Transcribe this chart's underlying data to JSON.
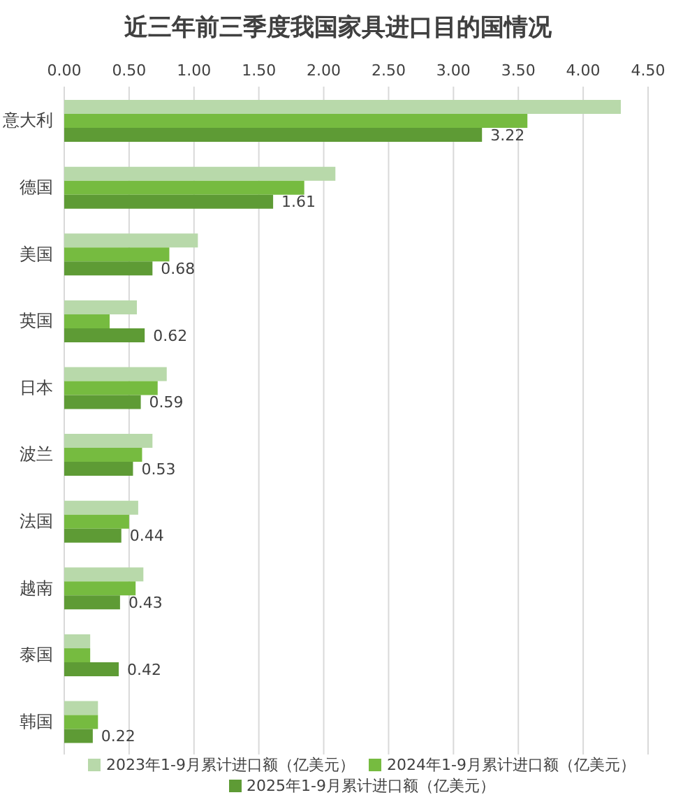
{
  "chart_data": {
    "type": "bar",
    "orientation": "horizontal",
    "title": "近三年前三季度我国家具进口目的国情况",
    "categories": [
      "意大利",
      "德国",
      "美国",
      "英国",
      "日本",
      "波兰",
      "法国",
      "越南",
      "泰国",
      "韩国"
    ],
    "series": [
      {
        "name": "2023年1-9月累计进口额（亿美元）",
        "color": "#b8d9aa",
        "values": [
          4.29,
          2.09,
          1.03,
          0.56,
          0.79,
          0.68,
          0.57,
          0.61,
          0.2,
          0.26
        ]
      },
      {
        "name": "2024年1-9月累计进口额（亿美元）",
        "color": "#76bb40",
        "values": [
          3.57,
          1.85,
          0.81,
          0.35,
          0.72,
          0.6,
          0.5,
          0.55,
          0.2,
          0.26
        ]
      },
      {
        "name": "2025年1-9月累计进口额（亿美元）",
        "color": "#5e9b35",
        "values": [
          3.22,
          1.61,
          0.68,
          0.62,
          0.59,
          0.53,
          0.44,
          0.43,
          0.42,
          0.22
        ],
        "value_labels": [
          "3.22",
          "1.61",
          "0.68",
          "0.62",
          "0.59",
          "0.53",
          "0.44",
          "0.43",
          "0.42",
          "0.22"
        ]
      }
    ],
    "xlim": [
      0,
      4.5
    ],
    "xticks": [
      {
        "value": 0,
        "label": "0.00"
      },
      {
        "value": 0.5,
        "label": "0.50"
      },
      {
        "value": 1,
        "label": "1.00"
      },
      {
        "value": 1.5,
        "label": "1.50"
      },
      {
        "value": 2,
        "label": "2.00"
      },
      {
        "value": 2.5,
        "label": "2.50"
      },
      {
        "value": 3,
        "label": "3.00"
      },
      {
        "value": 3.5,
        "label": "3.50"
      },
      {
        "value": 4,
        "label": "4.00"
      },
      {
        "value": 4.5,
        "label": "4.50"
      }
    ],
    "grid": "x",
    "legend": "bottom"
  }
}
